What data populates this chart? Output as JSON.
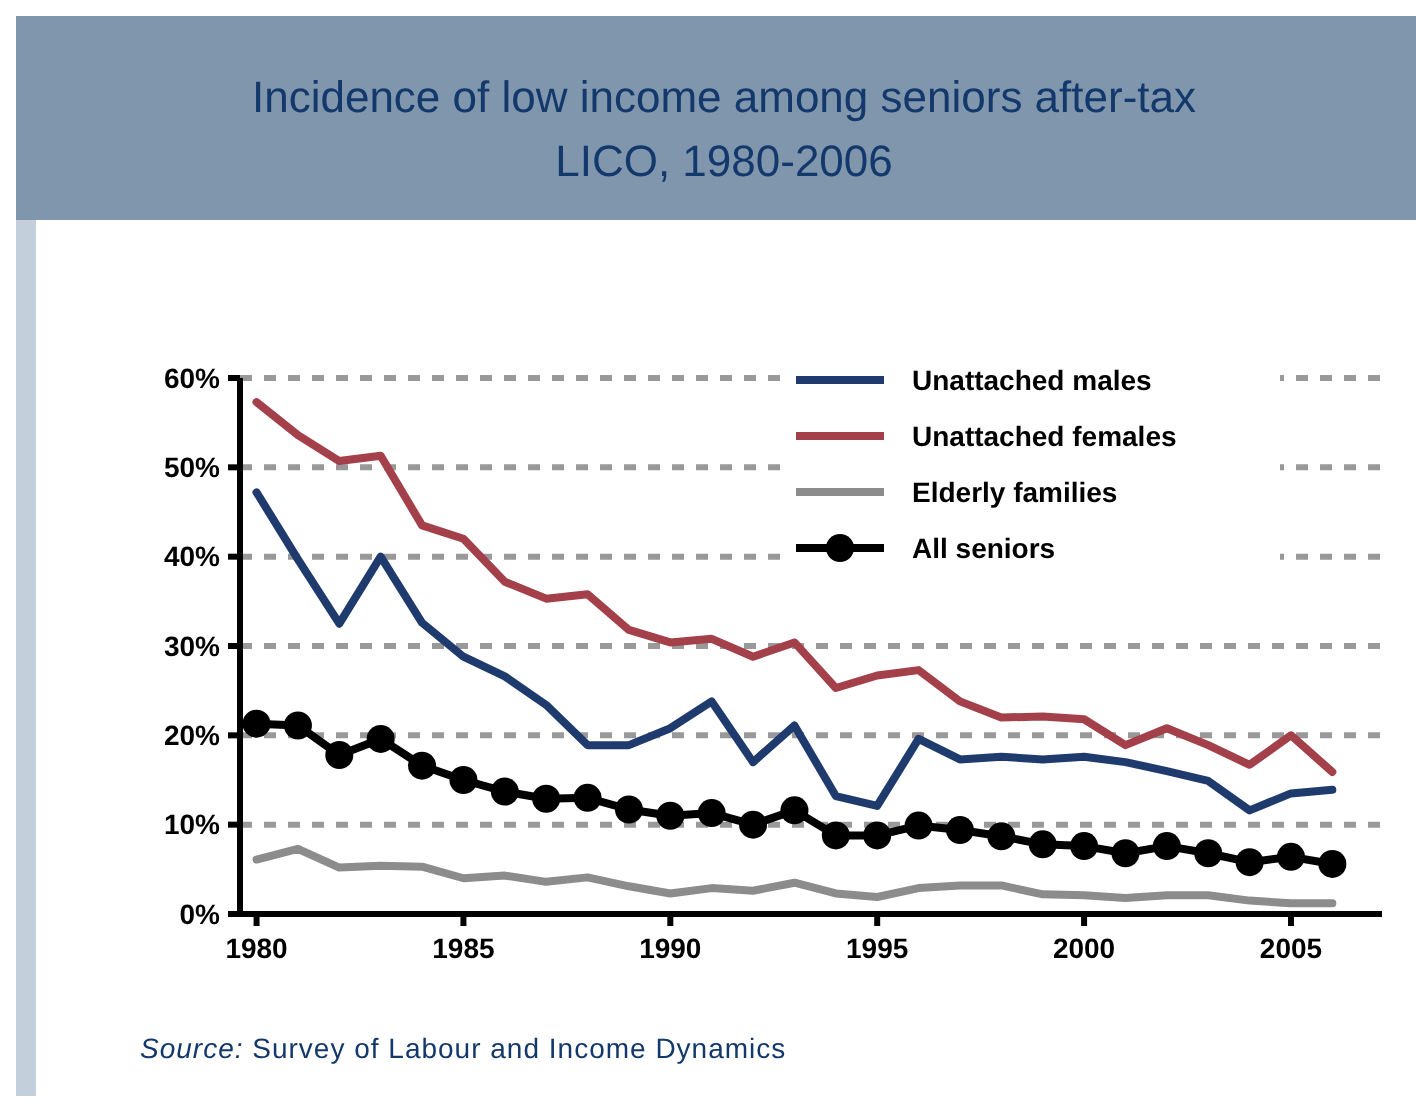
{
  "chart_data": {
    "type": "line",
    "title": "Incidence of low income among seniors after-tax LICO, 1980-2006",
    "x": [
      1980,
      1981,
      1982,
      1983,
      1984,
      1985,
      1986,
      1987,
      1988,
      1989,
      1990,
      1991,
      1992,
      1993,
      1994,
      1995,
      1996,
      1997,
      1998,
      1999,
      2000,
      2001,
      2002,
      2003,
      2004,
      2005,
      2006
    ],
    "series": [
      {
        "name": "Unattached males",
        "color": "#1f3b6e",
        "marker": "none",
        "values": [
          47.2,
          39.7,
          32.5,
          40.0,
          32.6,
          28.8,
          26.6,
          23.4,
          18.9,
          18.9,
          20.8,
          23.8,
          17.0,
          21.1,
          13.2,
          12.1,
          19.6,
          17.3,
          17.6,
          17.3,
          17.6,
          17.0,
          16.0,
          14.9,
          11.6,
          13.5,
          13.9
        ]
      },
      {
        "name": "Unattached females",
        "color": "#a3404a",
        "marker": "none",
        "values": [
          57.3,
          53.6,
          50.7,
          51.3,
          43.5,
          42.0,
          37.2,
          35.3,
          35.8,
          31.8,
          30.4,
          30.8,
          28.8,
          30.4,
          25.3,
          26.7,
          27.3,
          23.8,
          22.0,
          22.1,
          21.8,
          18.9,
          20.8,
          18.9,
          16.7,
          20.0,
          15.9
        ]
      },
      {
        "name": "Elderly families",
        "color": "#8c8c8c",
        "marker": "none",
        "values": [
          6.1,
          7.3,
          5.2,
          5.4,
          5.3,
          4.0,
          4.3,
          3.6,
          4.1,
          3.1,
          2.3,
          2.9,
          2.6,
          3.5,
          2.3,
          1.9,
          2.9,
          3.2,
          3.2,
          2.2,
          2.1,
          1.8,
          2.1,
          2.1,
          1.5,
          1.2,
          1.2
        ]
      },
      {
        "name": "All seniors",
        "color": "#000000",
        "marker": "circle",
        "values": [
          21.3,
          21.1,
          17.8,
          19.6,
          16.6,
          15.0,
          13.7,
          12.9,
          13.0,
          11.7,
          11.0,
          11.3,
          10.0,
          11.6,
          8.8,
          8.8,
          9.9,
          9.4,
          8.7,
          7.8,
          7.6,
          6.8,
          7.6,
          6.8,
          5.8,
          6.4,
          5.6
        ]
      }
    ],
    "xlim": [
      1979.6,
      2007.2
    ],
    "xticks": [
      1980,
      1985,
      1990,
      1995,
      2000,
      2005
    ],
    "ylim": [
      0,
      60
    ],
    "yticks": [
      {
        "value": 0,
        "label": "0%"
      },
      {
        "value": 10,
        "label": "10%"
      },
      {
        "value": 20,
        "label": "20%"
      },
      {
        "value": 30,
        "label": "30%"
      },
      {
        "value": 40,
        "label": "40%"
      },
      {
        "value": 50,
        "label": "50%"
      },
      {
        "value": 60,
        "label": "60%"
      }
    ],
    "grid": "y",
    "legend": "top right",
    "annotations": [
      "Source: Survey of Labour and Income Dynamics"
    ]
  }
}
